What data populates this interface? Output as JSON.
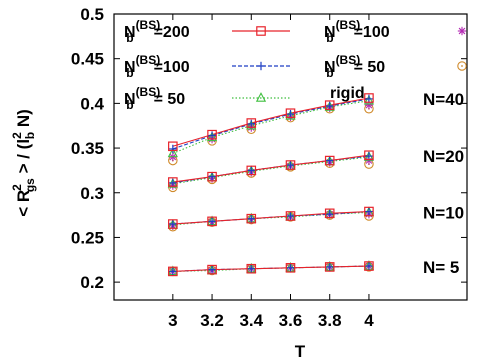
{
  "chart_data": {
    "type": "line",
    "xlabel": "T",
    "ylabel": "< R_gs^2 > / (l_b^2 N)",
    "xlim": [
      2.7,
      4.5
    ],
    "ylim": [
      0.18,
      0.5
    ],
    "xticks": [
      "3",
      "3.2",
      "3.4",
      "3.6",
      "3.8",
      "4"
    ],
    "yticks": [
      "0.2",
      "0.25",
      "0.3",
      "0.35",
      "0.4",
      "0.45",
      "0.5"
    ],
    "grid": false,
    "legend_position": "top",
    "x": [
      3.0,
      3.2,
      3.4,
      3.6,
      3.8,
      4.0
    ],
    "groups": [
      {
        "label": "N=40",
        "series": [
          {
            "name": "N_b^(BS)=200",
            "values": [
              0.352,
              0.365,
              0.378,
              0.389,
              0.398,
              0.406
            ]
          },
          {
            "name": "N_b^(BS)=100",
            "values": [
              0.349,
              0.364,
              0.377,
              0.388,
              0.397,
              0.405
            ]
          },
          {
            "name": "N_b^(BS)= 50",
            "values": [
              0.344,
              0.362,
              0.375,
              0.386,
              0.396,
              0.403
            ]
          },
          {
            "name": "N_b^(BS)=100",
            "values": [
              0.34,
              0.36,
              0.373,
              0.385,
              0.395,
              0.398
            ]
          },
          {
            "name": "N_b^(BS)= 50",
            "values": [
              0.336,
              0.358,
              0.371,
              0.384,
              0.394,
              0.394
            ]
          }
        ]
      },
      {
        "label": "N=20",
        "series": [
          {
            "name": "N_b^(BS)=200",
            "values": [
              0.312,
              0.318,
              0.325,
              0.331,
              0.336,
              0.342
            ]
          },
          {
            "name": "N_b^(BS)=100",
            "values": [
              0.311,
              0.318,
              0.325,
              0.331,
              0.336,
              0.341
            ]
          },
          {
            "name": "N_b^(BS)= 50",
            "values": [
              0.31,
              0.317,
              0.324,
              0.33,
              0.335,
              0.34
            ]
          },
          {
            "name": "N_b^(BS)=100",
            "values": [
              0.308,
              0.316,
              0.323,
              0.33,
              0.334,
              0.336
            ]
          },
          {
            "name": "N_b^(BS)= 50",
            "values": [
              0.306,
              0.315,
              0.322,
              0.329,
              0.333,
              0.332
            ]
          }
        ]
      },
      {
        "label": "N=10",
        "series": [
          {
            "name": "N_b^(BS)=200",
            "values": [
              0.265,
              0.268,
              0.271,
              0.274,
              0.277,
              0.279
            ]
          },
          {
            "name": "N_b^(BS)=100",
            "values": [
              0.265,
              0.268,
              0.271,
              0.274,
              0.276,
              0.279
            ]
          },
          {
            "name": "N_b^(BS)= 50",
            "values": [
              0.264,
              0.268,
              0.271,
              0.273,
              0.276,
              0.278
            ]
          },
          {
            "name": "N_b^(BS)=100",
            "values": [
              0.263,
              0.267,
              0.27,
              0.273,
              0.276,
              0.276
            ]
          },
          {
            "name": "N_b^(BS)= 50",
            "values": [
              0.262,
              0.267,
              0.27,
              0.273,
              0.275,
              0.274
            ]
          }
        ]
      },
      {
        "label": "N=  5",
        "series": [
          {
            "name": "N_b^(BS)=200",
            "values": [
              0.212,
              0.214,
              0.215,
              0.216,
              0.217,
              0.218
            ]
          },
          {
            "name": "N_b^(BS)=100",
            "values": [
              0.212,
              0.214,
              0.215,
              0.216,
              0.217,
              0.218
            ]
          },
          {
            "name": "N_b^(BS)= 50",
            "values": [
              0.212,
              0.213,
              0.215,
              0.216,
              0.217,
              0.218
            ]
          },
          {
            "name": "N_b^(BS)=100",
            "values": [
              0.212,
              0.213,
              0.215,
              0.216,
              0.217,
              0.218
            ]
          },
          {
            "name": "N_b^(BS)= 50",
            "values": [
              0.212,
              0.213,
              0.215,
              0.216,
              0.217,
              0.217
            ]
          }
        ]
      }
    ],
    "legend": [
      {
        "prefix": "N",
        "sub": "b",
        "sup": "(BS)",
        "suffix": "=200",
        "marker": "square",
        "line": "solid",
        "color": "#e8232b"
      },
      {
        "prefix": "N",
        "sub": "b",
        "sup": "(BS)",
        "suffix": "=100",
        "marker": "plus",
        "line": "dashed",
        "color": "#1f3fc4"
      },
      {
        "prefix": "N",
        "sub": "b",
        "sup": "(BS)",
        "suffix": "=  50",
        "marker": "triangle",
        "line": "dotted",
        "color": "#3fbf3f"
      },
      {
        "prefix": "N",
        "sub": "b",
        "sup": "(BS)",
        "suffix": "=100",
        "marker": "star",
        "line": "none",
        "color": "#b42bb4"
      },
      {
        "prefix": "N",
        "sub": "b",
        "sup": "(BS)",
        "suffix": "=  50",
        "marker": "circle",
        "line": "none",
        "color": "#d08a2a"
      }
    ],
    "rigid_label": "rigid",
    "ylabel_parts": {
      "open": "< R",
      "sub": "gs",
      "sup": "2",
      "mid": " > / (l",
      "sub2": "b",
      "sup2": "2",
      "close": " N)"
    }
  }
}
